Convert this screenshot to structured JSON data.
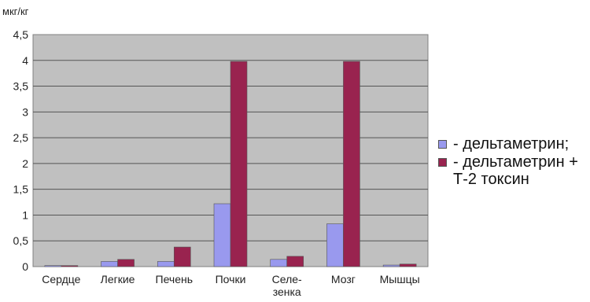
{
  "chart_data": {
    "type": "bar",
    "y_unit": "мкг/кг",
    "categories": [
      "Сердце",
      "Легкие",
      "Печень",
      "Почки",
      "Селе-\nзенка",
      "Мозг",
      "Мышцы"
    ],
    "series": [
      {
        "name": "- дельтаметрин;",
        "color": "#9999ee",
        "values": [
          0.02,
          0.1,
          0.1,
          1.22,
          0.14,
          0.83,
          0.03
        ]
      },
      {
        "name": "- дельтаметрин +\nТ-2 токсин",
        "color": "#99234f",
        "values": [
          0.02,
          0.14,
          0.38,
          3.98,
          0.2,
          3.98,
          0.05
        ]
      }
    ],
    "yticks": [
      "0",
      "0,5",
      "1",
      "1,5",
      "2",
      "2,5",
      "3",
      "3,5",
      "4",
      "4,5"
    ],
    "ylim": [
      0,
      4.5
    ],
    "grid": true,
    "plot_background": "#c0c0c0",
    "legend_position": "right"
  }
}
